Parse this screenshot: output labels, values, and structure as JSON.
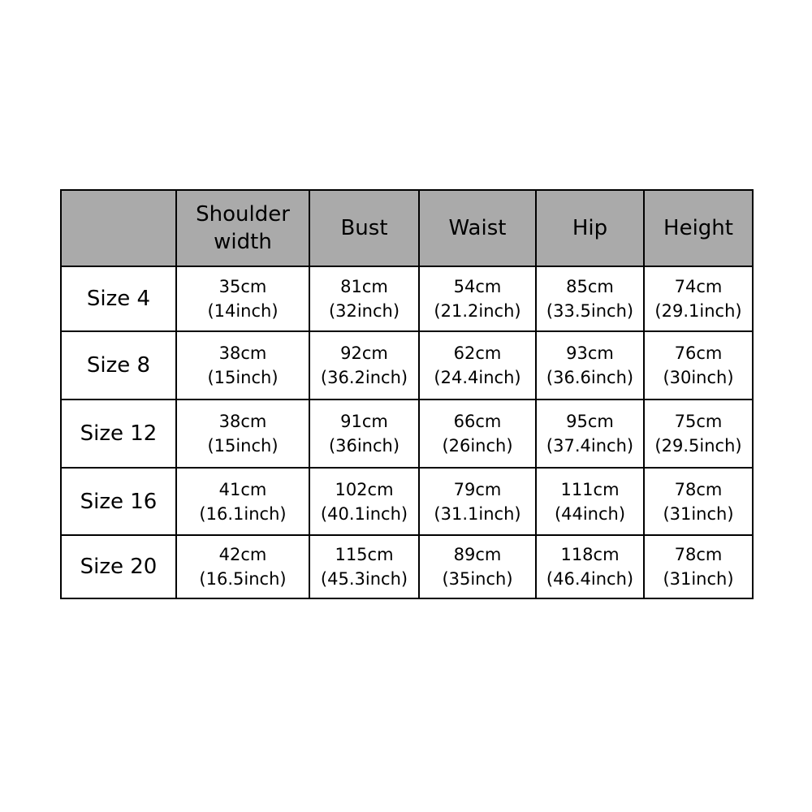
{
  "table": {
    "headers": [
      "",
      "Shoulder width",
      "Bust",
      "Waist",
      "Hip",
      "Height"
    ],
    "header_color": "#aaaaaa",
    "rows": [
      {
        "size": "Size 4",
        "cells": [
          [
            "35cm",
            "(14inch)"
          ],
          [
            "81cm",
            "(32inch)"
          ],
          [
            "54cm",
            "(21.2inch)"
          ],
          [
            "85cm",
            "(33.5inch)"
          ],
          [
            "74cm",
            "(29.1inch)"
          ]
        ]
      },
      {
        "size": "Size 8",
        "cells": [
          [
            "38cm",
            "(15inch)"
          ],
          [
            "92cm",
            "(36.2inch)"
          ],
          [
            "62cm",
            "(24.4inch)"
          ],
          [
            "93cm",
            "(36.6inch)"
          ],
          [
            "76cm",
            "(30inch)"
          ]
        ]
      },
      {
        "size": "Size 12",
        "cells": [
          [
            "38cm",
            "(15inch)"
          ],
          [
            "91cm",
            "(36inch)"
          ],
          [
            "66cm",
            "(26inch)"
          ],
          [
            "95cm",
            "(37.4inch)"
          ],
          [
            "75cm",
            "(29.5inch)"
          ]
        ]
      },
      {
        "size": "Size 16",
        "cells": [
          [
            "41cm",
            "(16.1inch)"
          ],
          [
            "102cm",
            "(40.1inch)"
          ],
          [
            "79cm",
            "(31.1inch)"
          ],
          [
            "111cm",
            "(44inch)"
          ],
          [
            "78cm",
            "(31inch)"
          ]
        ]
      },
      {
        "size": "Size 20",
        "cells": [
          [
            "42cm",
            "(16.5inch)"
          ],
          [
            "115cm",
            "(45.3inch)"
          ],
          [
            "89cm",
            "(35inch)"
          ],
          [
            "118cm",
            "(46.4inch)"
          ],
          [
            "78cm",
            "(31inch)"
          ]
        ]
      }
    ]
  }
}
